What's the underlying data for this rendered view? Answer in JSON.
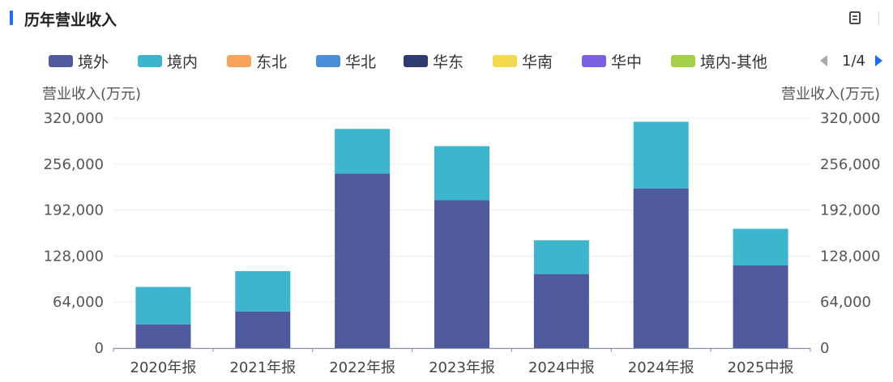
{
  "header": {
    "title": "历年营业收入",
    "copy_icon": "copy-icon"
  },
  "legend": {
    "items": [
      {
        "label": "境外",
        "color": "#4e5a9c"
      },
      {
        "label": "境内",
        "color": "#3db5cc"
      },
      {
        "label": "东北",
        "color": "#f7a35c"
      },
      {
        "label": "华北",
        "color": "#4a90d9"
      },
      {
        "label": "华东",
        "color": "#2f3a6e"
      },
      {
        "label": "华南",
        "color": "#f2d94e"
      },
      {
        "label": "华中",
        "color": "#7b61e0"
      },
      {
        "label": "境内-其他",
        "color": "#a5cf4a"
      }
    ],
    "pager": "1/4"
  },
  "chart_data": {
    "type": "bar",
    "stacked": true,
    "categories": [
      "2020年报",
      "2021年报",
      "2022年报",
      "2023年报",
      "2024中报",
      "2024年报",
      "2025中报"
    ],
    "series": [
      {
        "name": "境外",
        "color": "#4e5a9c",
        "values": [
          33000,
          51000,
          243000,
          206000,
          103000,
          222000,
          115000
        ]
      },
      {
        "name": "境内",
        "color": "#3db5cc",
        "values": [
          52000,
          56000,
          62000,
          75000,
          47000,
          93000,
          51000
        ]
      }
    ],
    "ylabel_left": "营业收入(万元)",
    "ylabel_right": "营业收入(万元)",
    "ylim": [
      0,
      320000
    ],
    "yticks": [
      "0",
      "64,000",
      "128,000",
      "192,000",
      "256,000",
      "320,000"
    ],
    "grid": true,
    "legend_position": "top"
  }
}
